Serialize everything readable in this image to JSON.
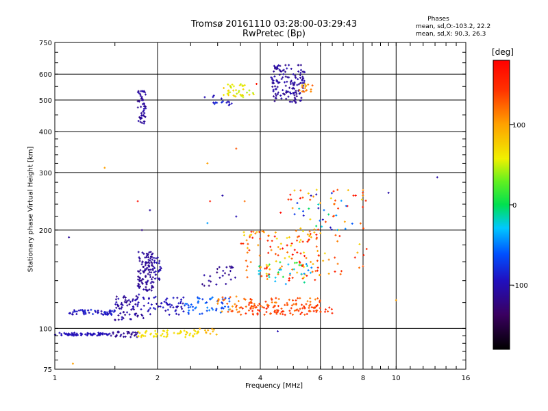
{
  "title": "Tromsø 20161110 03:28:00-03:29:43",
  "subtitle": "RwPretec (Bp)",
  "phases": {
    "title": "Phases",
    "stat_o": "mean, sd,O:-103.2, 22.2",
    "stat_x": "mean, sd,X:  90.3, 26.3"
  },
  "colorbar": {
    "unit": "[deg]",
    "ticks": [
      {
        "value": 100,
        "label": "100"
      },
      {
        "value": 0,
        "label": "0"
      },
      {
        "value": -100,
        "label": "-100"
      }
    ],
    "range": [
      -180,
      180
    ]
  },
  "chart_data": {
    "type": "scatter",
    "xlabel": "Frequency [MHz]",
    "ylabel": "Stationary phase Virtual Height [km]",
    "xscale": "log",
    "yscale": "log",
    "xlim": [
      1,
      16
    ],
    "ylim": [
      75,
      750
    ],
    "xticks": [
      {
        "value": 1,
        "label": "1"
      },
      {
        "value": 2,
        "label": "2"
      },
      {
        "value": 4,
        "label": "4"
      },
      {
        "value": 6,
        "label": "6"
      },
      {
        "value": 8,
        "label": "8"
      },
      {
        "value": 10,
        "label": "10"
      },
      {
        "value": 16,
        "label": "16"
      }
    ],
    "yticks": [
      {
        "value": 75,
        "label": "75"
      },
      {
        "value": 100,
        "label": "100"
      },
      {
        "value": 200,
        "label": "200"
      },
      {
        "value": 300,
        "label": "300"
      },
      {
        "value": 400,
        "label": "400"
      },
      {
        "value": 500,
        "label": "500"
      },
      {
        "value": 600,
        "label": "600"
      },
      {
        "value": 750,
        "label": "750"
      }
    ],
    "grid": true,
    "clusters": [
      {
        "f": [
          1.0,
          1.45
        ],
        "h": [
          95,
          97
        ],
        "phase": [
          -100,
          -95
        ],
        "n": 70
      },
      {
        "f": [
          1.45,
          1.75
        ],
        "h": [
          94,
          98
        ],
        "phase": [
          -120,
          -110
        ],
        "n": 30
      },
      {
        "f": [
          1.75,
          2.65
        ],
        "h": [
          94,
          99
        ],
        "phase": [
          60,
          75
        ],
        "n": 55
      },
      {
        "f": [
          2.65,
          3.0
        ],
        "h": [
          95,
          100
        ],
        "phase": [
          85,
          100
        ],
        "n": 10
      },
      {
        "f": [
          1.1,
          1.5
        ],
        "h": [
          110,
          114
        ],
        "phase": [
          -110,
          -80
        ],
        "n": 60
      },
      {
        "f": [
          1.5,
          1.85
        ],
        "h": [
          106,
          128
        ],
        "phase": [
          -120,
          -95
        ],
        "n": 70
      },
      {
        "f": [
          1.85,
          2.4
        ],
        "h": [
          110,
          125
        ],
        "phase": [
          -110,
          -85
        ],
        "n": 50
      },
      {
        "f": [
          2.4,
          3.3
        ],
        "h": [
          110,
          125
        ],
        "phase": [
          -75,
          -45
        ],
        "n": 50
      },
      {
        "f": [
          3.0,
          3.5
        ],
        "h": [
          112,
          126
        ],
        "phase": [
          100,
          140
        ],
        "n": 25
      },
      {
        "f": [
          3.5,
          6.5
        ],
        "h": [
          110,
          118
        ],
        "phase": [
          120,
          160
        ],
        "n": 100
      },
      {
        "f": [
          3.5,
          6.0
        ],
        "h": [
          118,
          124
        ],
        "phase": [
          110,
          150
        ],
        "n": 40
      },
      {
        "f": [
          1.75,
          1.95
        ],
        "h": [
          130,
          172
        ],
        "phase": [
          -120,
          -105
        ],
        "n": 110
      },
      {
        "f": [
          1.95,
          2.05
        ],
        "h": [
          140,
          165
        ],
        "phase": [
          -110,
          -95
        ],
        "n": 25
      },
      {
        "f": [
          2.7,
          3.5
        ],
        "h": [
          135,
          155
        ],
        "phase": [
          -125,
          -105
        ],
        "n": 25
      },
      {
        "f": [
          3.5,
          6.0
        ],
        "h": [
          140,
          200
        ],
        "phase": [
          60,
          170
        ],
        "n": 120
      },
      {
        "f": [
          3.8,
          5.7
        ],
        "h": [
          135,
          160
        ],
        "phase": [
          -50,
          20
        ],
        "n": 30
      },
      {
        "f": [
          4.5,
          8.2
        ],
        "h": [
          145,
          270
        ],
        "phase": [
          70,
          180
        ],
        "n": 70
      },
      {
        "f": [
          5.0,
          7.5
        ],
        "h": [
          200,
          260
        ],
        "phase": [
          -100,
          0
        ],
        "n": 25
      },
      {
        "f": [
          1.75,
          1.85
        ],
        "h": [
          420,
          540
        ],
        "phase": [
          -120,
          -100
        ],
        "n": 50
      },
      {
        "f": [
          2.9,
          3.3
        ],
        "h": [
          480,
          520
        ],
        "phase": [
          -100,
          -80
        ],
        "n": 15
      },
      {
        "f": [
          3.1,
          3.9
        ],
        "h": [
          510,
          560
        ],
        "phase": [
          40,
          80
        ],
        "n": 40
      },
      {
        "f": [
          4.3,
          5.4
        ],
        "h": [
          490,
          640
        ],
        "phase": [
          -120,
          -100
        ],
        "n": 140
      },
      {
        "f": [
          5.2,
          5.7
        ],
        "h": [
          525,
          560
        ],
        "phase": [
          80,
          130
        ],
        "n": 15
      }
    ],
    "sparse": [
      {
        "f": 1.1,
        "h": 190,
        "phase": -110
      },
      {
        "f": 1.13,
        "h": 78,
        "phase": 100
      },
      {
        "f": 1.4,
        "h": 310,
        "phase": 100
      },
      {
        "f": 1.75,
        "h": 245,
        "phase": 170
      },
      {
        "f": 1.8,
        "h": 200,
        "phase": -120
      },
      {
        "f": 1.9,
        "h": 230,
        "phase": -110
      },
      {
        "f": 2.8,
        "h": 320,
        "phase": 100
      },
      {
        "f": 2.85,
        "h": 245,
        "phase": 160
      },
      {
        "f": 3.4,
        "h": 355,
        "phase": 130
      },
      {
        "f": 3.6,
        "h": 245,
        "phase": 120
      },
      {
        "f": 3.1,
        "h": 255,
        "phase": -105
      },
      {
        "f": 2.8,
        "h": 210,
        "phase": -40
      },
      {
        "f": 3.4,
        "h": 220,
        "phase": -100
      },
      {
        "f": 7.5,
        "h": 255,
        "phase": 150
      },
      {
        "f": 8.0,
        "h": 265,
        "phase": 110
      },
      {
        "f": 9.5,
        "h": 260,
        "phase": -105
      },
      {
        "f": 13.2,
        "h": 290,
        "phase": -105
      },
      {
        "f": 10.0,
        "h": 122,
        "phase": 100
      },
      {
        "f": 8.2,
        "h": 175,
        "phase": 150
      },
      {
        "f": 4.5,
        "h": 98,
        "phase": -100
      },
      {
        "f": 2.75,
        "h": 510,
        "phase": -100
      },
      {
        "f": 3.9,
        "h": 560,
        "phase": 165
      }
    ]
  }
}
